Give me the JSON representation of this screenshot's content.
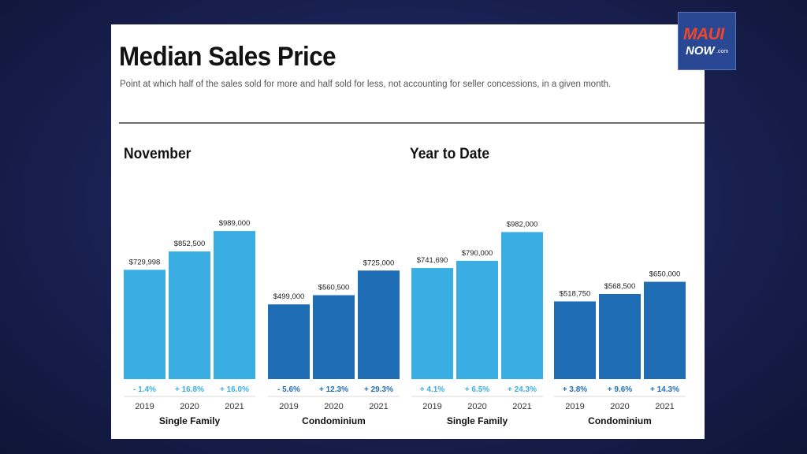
{
  "header": {
    "title": "Median Sales Price",
    "subtitle": "Point at which half of the sales sold for more and half sold for less, not accounting for seller concessions, in a given month."
  },
  "logo": {
    "maui": "MAUI",
    "now": "NOW",
    "com": ".com"
  },
  "colors": {
    "single_family": "#3aaee2",
    "condominium": "#1f6db4",
    "pct_single_family": "#3aaee2",
    "pct_condominium": "#1f6db4"
  },
  "chart_data": [
    {
      "type": "bar",
      "title": "November",
      "ylim": [
        0,
        1200000
      ],
      "groups": [
        {
          "name": "Single Family",
          "categories": [
            "2019",
            "2020",
            "2021"
          ],
          "values": [
            729998,
            852500,
            989000
          ],
          "value_labels": [
            "$729,998",
            "$852,500",
            "$989,000"
          ],
          "pct_labels": [
            "- 1.4%",
            "+ 16.8%",
            "+ 16.0%"
          ]
        },
        {
          "name": "Condominium",
          "categories": [
            "2019",
            "2020",
            "2021"
          ],
          "values": [
            499000,
            560500,
            725000
          ],
          "value_labels": [
            "$499,000",
            "$560,500",
            "$725,000"
          ],
          "pct_labels": [
            "- 5.6%",
            "+ 12.3%",
            "+ 29.3%"
          ]
        }
      ]
    },
    {
      "type": "bar",
      "title": "Year to Date",
      "ylim": [
        0,
        1200000
      ],
      "groups": [
        {
          "name": "Single Family",
          "categories": [
            "2019",
            "2020",
            "2021"
          ],
          "values": [
            741690,
            790000,
            982000
          ],
          "value_labels": [
            "$741,690",
            "$790,000",
            "$982,000"
          ],
          "pct_labels": [
            "+ 4.1%",
            "+ 6.5%",
            "+ 24.3%"
          ]
        },
        {
          "name": "Condominium",
          "categories": [
            "2019",
            "2020",
            "2021"
          ],
          "values": [
            518750,
            568500,
            650000
          ],
          "value_labels": [
            "$518,750",
            "$568,500",
            "$650,000"
          ],
          "pct_labels": [
            "+ 3.8%",
            "+ 9.6%",
            "+ 14.3%"
          ]
        }
      ]
    }
  ]
}
